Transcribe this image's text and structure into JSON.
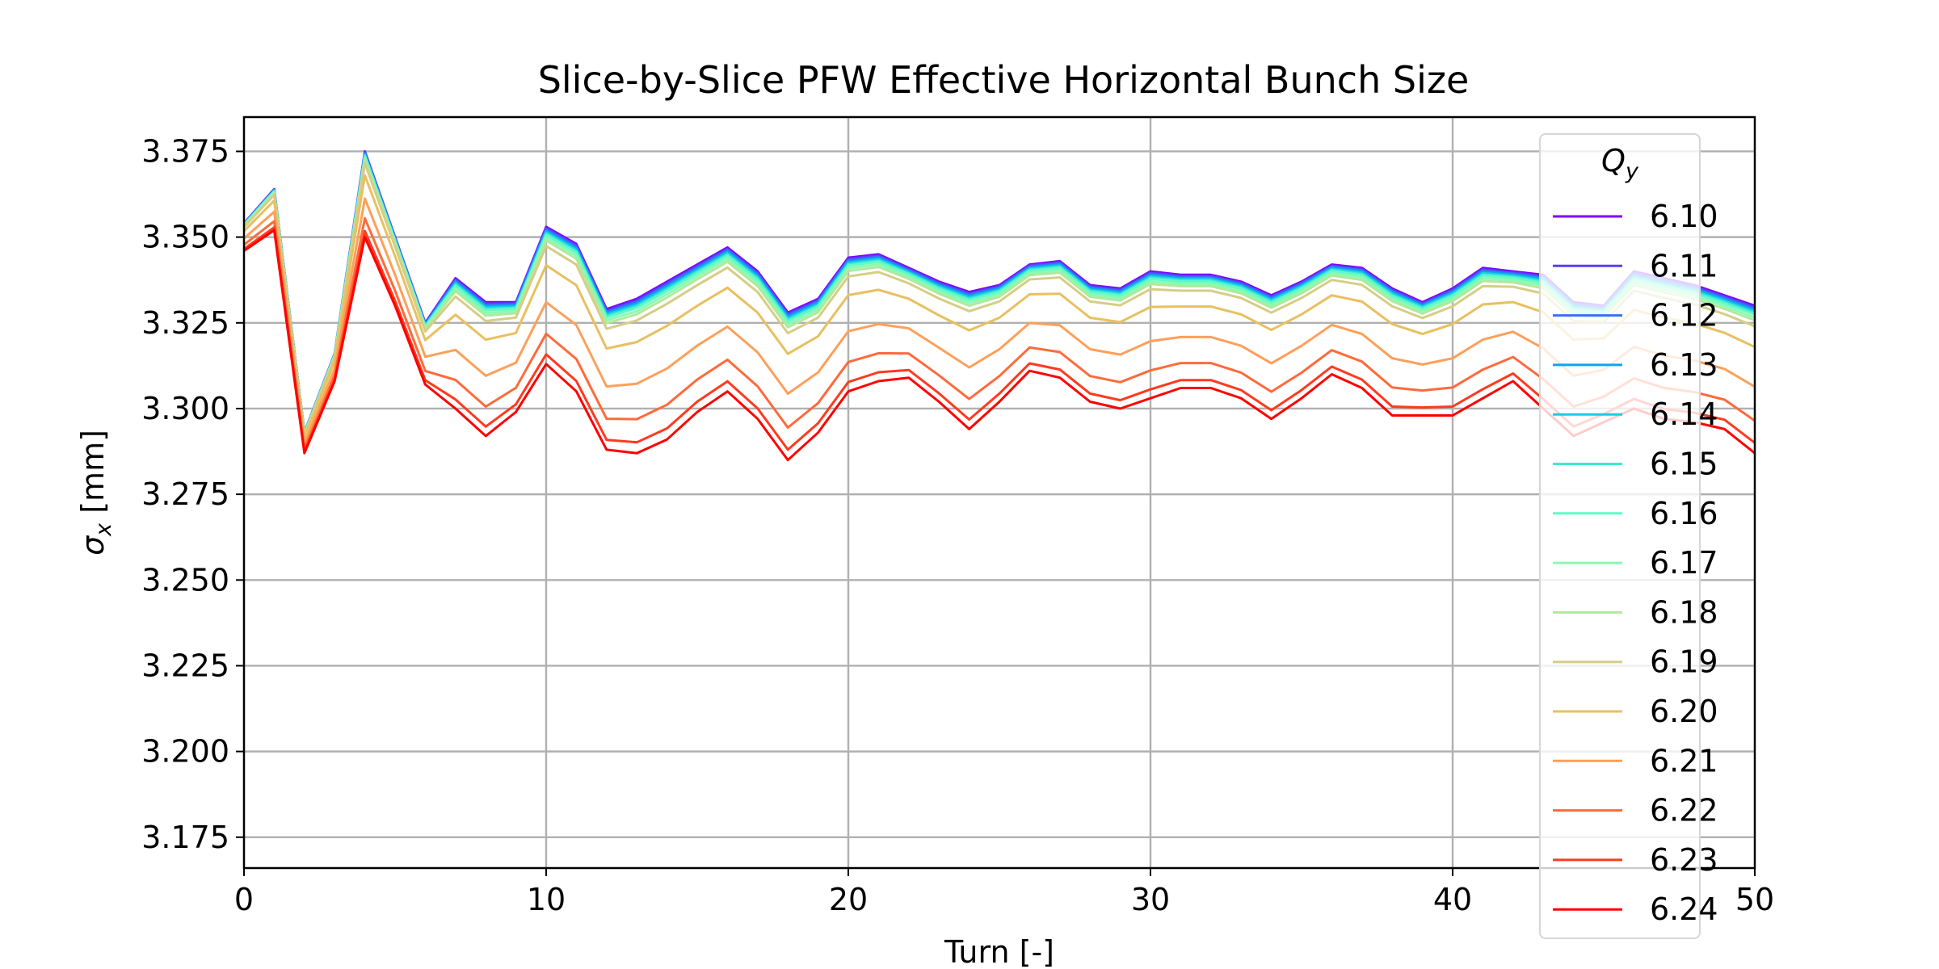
{
  "chart_data": {
    "type": "line",
    "title": "Slice-by-Slice PFW Effective Horizontal Bunch Size",
    "xlabel": "Turn [-]",
    "ylabel": "σx [mm]",
    "ylabel_symbol": "σ",
    "ylabel_subscript": "x",
    "ylabel_unit": " [mm]",
    "xlim": [
      0,
      50
    ],
    "ylim": [
      3.166,
      3.385
    ],
    "x_ticks": [
      0,
      10,
      20,
      30,
      40,
      50
    ],
    "x_tick_labels": [
      "0",
      "10",
      "20",
      "30",
      "40",
      "50"
    ],
    "y_ticks": [
      3.175,
      3.2,
      3.225,
      3.25,
      3.275,
      3.3,
      3.325,
      3.35,
      3.375
    ],
    "y_tick_labels": [
      "3.175",
      "3.200",
      "3.225",
      "3.250",
      "3.275",
      "3.300",
      "3.325",
      "3.350",
      "3.375"
    ],
    "grid": true,
    "legend": {
      "position": "right",
      "title": "Qy",
      "title_symbol": "Q",
      "title_subscript": "y"
    },
    "x": [
      0,
      1,
      2,
      3,
      4,
      5,
      6,
      7,
      8,
      9,
      10,
      11,
      12,
      13,
      14,
      15,
      16,
      17,
      18,
      19,
      20,
      21,
      22,
      23,
      24,
      25,
      26,
      27,
      28,
      29,
      30,
      31,
      32,
      33,
      34,
      35,
      36,
      37,
      38,
      39,
      40,
      41,
      42,
      43,
      44,
      45,
      46,
      47,
      48,
      49,
      50
    ],
    "top_curve": [
      3.354,
      3.364,
      3.293,
      3.316,
      3.375,
      3.35,
      3.325,
      3.338,
      3.331,
      3.331,
      3.353,
      3.348,
      3.329,
      3.332,
      3.337,
      3.342,
      3.347,
      3.34,
      3.328,
      3.332,
      3.344,
      3.345,
      3.341,
      3.337,
      3.334,
      3.336,
      3.342,
      3.343,
      3.336,
      3.335,
      3.34,
      3.339,
      3.339,
      3.337,
      3.333,
      3.337,
      3.342,
      3.341,
      3.335,
      3.331,
      3.335,
      3.341,
      3.34,
      3.339,
      3.331,
      3.33,
      3.34,
      3.338,
      3.336,
      3.333,
      3.33
    ],
    "bottom_curve": [
      3.346,
      3.352,
      3.287,
      3.308,
      3.35,
      3.33,
      3.307,
      3.3,
      3.292,
      3.299,
      3.313,
      3.305,
      3.288,
      3.287,
      3.291,
      3.299,
      3.305,
      3.297,
      3.285,
      3.293,
      3.305,
      3.308,
      3.309,
      3.302,
      3.294,
      3.302,
      3.311,
      3.309,
      3.302,
      3.3,
      3.303,
      3.306,
      3.306,
      3.303,
      3.297,
      3.303,
      3.31,
      3.306,
      3.298,
      3.298,
      3.298,
      3.303,
      3.308,
      3.3,
      3.292,
      3.296,
      3.3,
      3.297,
      3.296,
      3.294,
      3.287
    ],
    "series": [
      {
        "name": "6.10",
        "color": "#8000ff",
        "weight": 0.0
      },
      {
        "name": "6.11",
        "color": "#5a3cfe",
        "weight": 0.01
      },
      {
        "name": "6.12",
        "color": "#3473f8",
        "weight": 0.02
      },
      {
        "name": "6.13",
        "color": "#0ea5ef",
        "weight": 0.03
      },
      {
        "name": "6.14",
        "color": "#18cde4",
        "weight": 0.04
      },
      {
        "name": "6.15",
        "color": "#3ee9d6",
        "weight": 0.05
      },
      {
        "name": "6.16",
        "color": "#64fac5",
        "weight": 0.06
      },
      {
        "name": "6.17",
        "color": "#8afab2",
        "weight": 0.08
      },
      {
        "name": "6.18",
        "color": "#b0e99d",
        "weight": 0.1
      },
      {
        "name": "6.19",
        "color": "#d6cd86",
        "weight": 0.14
      },
      {
        "name": "6.20",
        "color": "#e8c060",
        "weight": 0.28
      },
      {
        "name": "6.21",
        "color": "#ff9f5a",
        "weight": 0.55
      },
      {
        "name": "6.22",
        "color": "#ff6a3b",
        "weight": 0.78
      },
      {
        "name": "6.23",
        "color": "#ff3a1f",
        "weight": 0.93
      },
      {
        "name": "6.24",
        "color": "#ff0000",
        "weight": 1.0
      }
    ]
  }
}
